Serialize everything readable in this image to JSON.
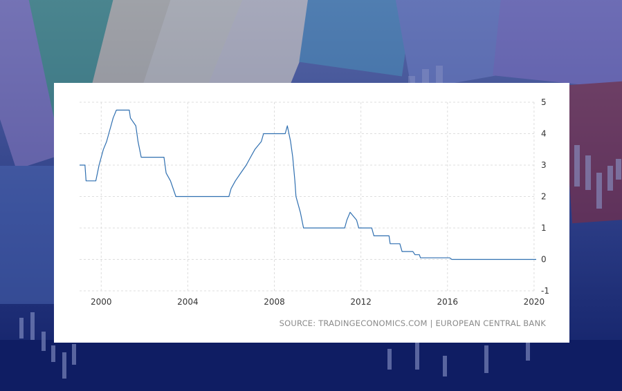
{
  "source": {
    "text": "SOURCE: TRADINGECONOMICS.COM | EUROPEAN CENTRAL BANK"
  },
  "colors": {
    "line": "#2f6fb0",
    "grid": "#dddddd",
    "card": "#ffffff",
    "background": "#1a2a6c"
  },
  "chart_data": {
    "type": "line",
    "xlabel": "",
    "ylabel": "",
    "xlim": [
      1999.0,
      2020.1
    ],
    "ylim": [
      -1,
      5
    ],
    "x_ticks": [
      2000,
      2004,
      2008,
      2012,
      2016,
      2020
    ],
    "x_tick_labels": [
      "2000",
      "2004",
      "2008",
      "2012",
      "2016",
      "2020"
    ],
    "y_ticks": [
      5,
      4,
      3,
      2,
      1,
      0,
      -1
    ],
    "y_tick_labels": [
      "5",
      "4",
      "3",
      "2",
      "1",
      "0",
      "-1"
    ],
    "y_axis_side": "right",
    "grid": true,
    "legend": false,
    "series": [
      {
        "x": [
          1999.0,
          1999.25,
          1999.3,
          1999.75,
          1999.9,
          2000.0,
          2000.1,
          2000.25,
          2000.35,
          2000.45,
          2000.55,
          2000.7,
          2000.8,
          2001.3,
          2001.35,
          2001.6,
          2001.7,
          2001.85,
          2002.0,
          2002.9,
          2003.0,
          2003.2,
          2003.45,
          2005.9,
          2006.0,
          2006.2,
          2006.45,
          2006.7,
          2006.9,
          2007.1,
          2007.4,
          2007.5,
          2008.5,
          2008.6,
          2008.75,
          2008.85,
          2008.95,
          2009.0,
          2009.2,
          2009.35,
          2011.25,
          2011.35,
          2011.5,
          2011.8,
          2011.9,
          2012.0,
          2012.5,
          2012.6,
          2013.3,
          2013.35,
          2013.8,
          2013.9,
          2014.4,
          2014.5,
          2014.7,
          2014.75,
          2016.1,
          2016.2,
          2020.1
        ],
        "y": [
          3.0,
          3.0,
          2.5,
          2.5,
          3.0,
          3.25,
          3.5,
          3.75,
          4.0,
          4.25,
          4.5,
          4.75,
          4.75,
          4.75,
          4.5,
          4.25,
          3.75,
          3.25,
          3.25,
          3.25,
          2.75,
          2.5,
          2.0,
          2.0,
          2.25,
          2.5,
          2.75,
          3.0,
          3.25,
          3.5,
          3.75,
          4.0,
          4.0,
          4.25,
          3.75,
          3.25,
          2.5,
          2.0,
          1.5,
          1.0,
          1.0,
          1.25,
          1.5,
          1.25,
          1.0,
          1.0,
          1.0,
          0.75,
          0.75,
          0.5,
          0.5,
          0.25,
          0.25,
          0.15,
          0.15,
          0.05,
          0.05,
          0.0,
          0.0
        ]
      }
    ]
  }
}
